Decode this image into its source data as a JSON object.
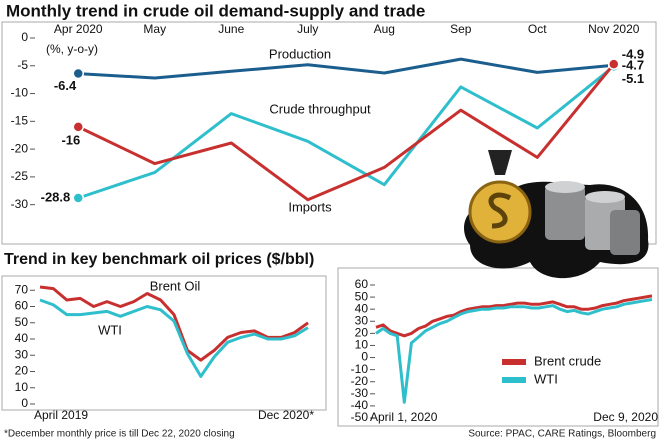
{
  "chart_data": [
    {
      "type": "line",
      "title": "Monthly trend in crude oil demand-supply and trade",
      "y_label": "(%, y-o-y)",
      "categories": [
        "Apr 2020",
        "May",
        "June",
        "July",
        "Aug",
        "Sep",
        "Oct",
        "Nov 2020"
      ],
      "ylim": [
        -36,
        0
      ],
      "yticks": [
        0,
        -5,
        -10,
        -15,
        -20,
        -25,
        -30
      ],
      "series": [
        {
          "name": "Production",
          "color": "#1b5e8e",
          "values": [
            -6.4,
            -7.2,
            -6.0,
            -4.8,
            -6.3,
            -3.8,
            -6.2,
            -4.9
          ]
        },
        {
          "name": "Crude throughput",
          "color": "#2fbfcc",
          "values": [
            -28.8,
            -24.2,
            -13.6,
            -18.6,
            -26.4,
            -8.8,
            -16.2,
            -5.1
          ]
        },
        {
          "name": "Imports",
          "color": "#c8302f",
          "values": [
            -16,
            -22.6,
            -18.9,
            -29.1,
            -23.3,
            -13.0,
            -21.5,
            -4.7
          ]
        }
      ]
    },
    {
      "type": "line",
      "title": "Trend in key benchmark oil prices ($/bbl)",
      "note": "*December monthly price is till Dec 22, 2020 closing",
      "categories": [
        "April 2019",
        null,
        null,
        null,
        null,
        null,
        null,
        null,
        null,
        null,
        null,
        null,
        null,
        null,
        null,
        null,
        null,
        null,
        null,
        null,
        "Dec 2020*"
      ],
      "ylim": [
        0,
        80
      ],
      "yticks": [
        0,
        10,
        20,
        30,
        40,
        50,
        60,
        70
      ],
      "series": [
        {
          "name": "Brent Oil",
          "color": "#c8302f",
          "values": [
            72,
            71,
            64,
            65,
            60,
            63,
            60,
            63,
            68,
            64,
            55,
            33,
            27,
            33,
            41,
            44,
            45,
            41,
            41,
            44,
            50
          ]
        },
        {
          "name": "WTI",
          "color": "#2fbfcc",
          "values": [
            64,
            61,
            55,
            55,
            56,
            57,
            54,
            57,
            60,
            58,
            51,
            31,
            17,
            29,
            38,
            41,
            43,
            40,
            40,
            42,
            47
          ]
        }
      ]
    },
    {
      "type": "line",
      "source": "Source: PPAC, CARE Ratings, Bloomberg",
      "legend": "lower right",
      "categories": [
        "April 1, 2020",
        null,
        null,
        null,
        null,
        null,
        null,
        null,
        null,
        null,
        null,
        null,
        null,
        null,
        null,
        null,
        null,
        null,
        null,
        null,
        null,
        null,
        null,
        null,
        null,
        null,
        null,
        null,
        null,
        null,
        null,
        null,
        null,
        null,
        null,
        null,
        null,
        null,
        null,
        "Dec 9, 2020"
      ],
      "ylim": [
        -50,
        60
      ],
      "yticks": [
        60,
        50,
        40,
        30,
        20,
        10,
        0,
        -10,
        -20,
        -30,
        -40,
        -50
      ],
      "series": [
        {
          "name": "Brent crude",
          "color": "#c8302f",
          "values": [
            25,
            27,
            22,
            20,
            18,
            20,
            24,
            26,
            30,
            32,
            34,
            35,
            38,
            40,
            41,
            42,
            42,
            43,
            43,
            44,
            45,
            45,
            44,
            44,
            45,
            46,
            44,
            42,
            42,
            40,
            40,
            41,
            43,
            44,
            45,
            47,
            48,
            49,
            50,
            51
          ]
        },
        {
          "name": "WTI",
          "color": "#2fbfcc",
          "values": [
            20,
            24,
            20,
            18,
            -37,
            12,
            17,
            22,
            25,
            28,
            30,
            33,
            36,
            38,
            39,
            40,
            40,
            41,
            41,
            42,
            42,
            42,
            41,
            41,
            42,
            43,
            40,
            38,
            39,
            37,
            36,
            38,
            40,
            41,
            42,
            44,
            45,
            46,
            47,
            48
          ]
        }
      ]
    }
  ]
}
